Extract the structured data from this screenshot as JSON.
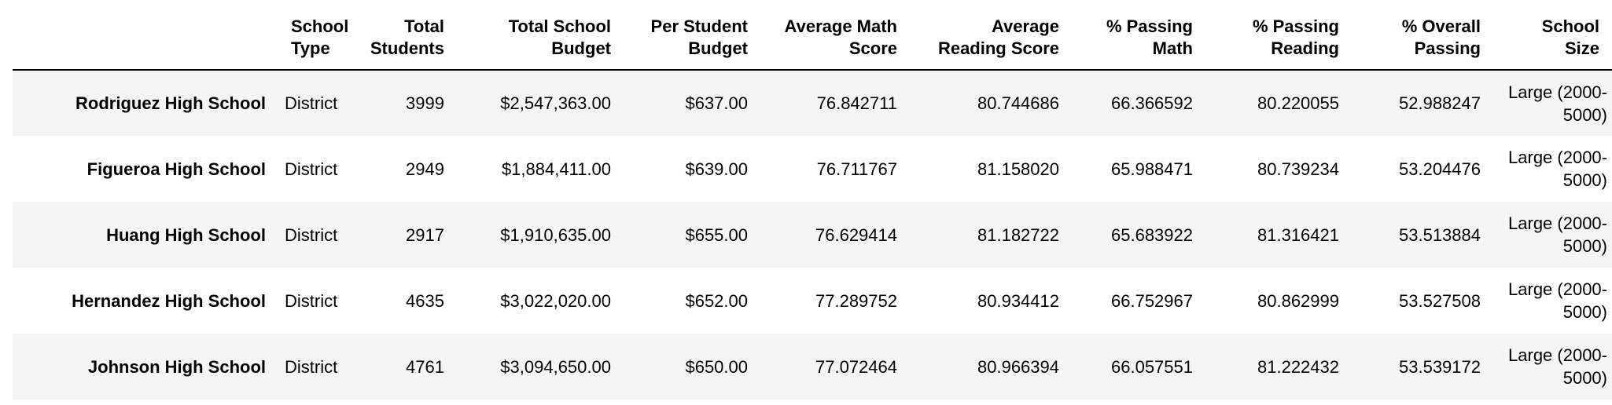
{
  "table": {
    "columns": [
      "School Type",
      "Total Students",
      "Total School Budget",
      "Per Student Budget",
      "Average Math Score",
      "Average Reading Score",
      "% Passing Math",
      "% Passing Reading",
      "% Overall Passing",
      "School Size"
    ],
    "rows": [
      {
        "index": "Rodriguez High School",
        "cells": [
          "District",
          "3999",
          "$2,547,363.00",
          "$637.00",
          "76.842711",
          "80.744686",
          "66.366592",
          "80.220055",
          "52.988247",
          "Large (2000-5000)"
        ]
      },
      {
        "index": "Figueroa High School",
        "cells": [
          "District",
          "2949",
          "$1,884,411.00",
          "$639.00",
          "76.711767",
          "81.158020",
          "65.988471",
          "80.739234",
          "53.204476",
          "Large (2000-5000)"
        ]
      },
      {
        "index": "Huang High School",
        "cells": [
          "District",
          "2917",
          "$1,910,635.00",
          "$655.00",
          "76.629414",
          "81.182722",
          "65.683922",
          "81.316421",
          "53.513884",
          "Large (2000-5000)"
        ]
      },
      {
        "index": "Hernandez High School",
        "cells": [
          "District",
          "4635",
          "$3,022,020.00",
          "$652.00",
          "77.289752",
          "80.934412",
          "66.752967",
          "80.862999",
          "53.527508",
          "Large (2000-5000)"
        ]
      },
      {
        "index": "Johnson High School",
        "cells": [
          "District",
          "4761",
          "$3,094,650.00",
          "$650.00",
          "77.072464",
          "80.966394",
          "66.057551",
          "81.222432",
          "53.539172",
          "Large (2000-5000)"
        ]
      }
    ]
  }
}
